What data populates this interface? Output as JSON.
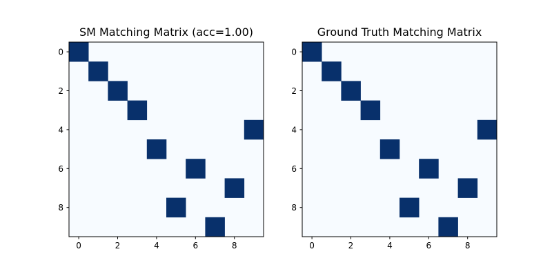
{
  "chart_data": [
    {
      "type": "heatmap",
      "title": "SM Matching Matrix (acc=1.00)",
      "xlabel": "",
      "ylabel": "",
      "rows": 10,
      "cols": 10,
      "x_ticks": [
        "0",
        "2",
        "4",
        "6",
        "8"
      ],
      "y_ticks": [
        "0",
        "2",
        "4",
        "6",
        "8"
      ],
      "colormap": "Blues",
      "value_range": [
        0,
        1
      ],
      "low_color": "#f7fbff",
      "high_color": "#08306b",
      "grid": false,
      "matrix": [
        [
          1,
          0,
          0,
          0,
          0,
          0,
          0,
          0,
          0,
          0
        ],
        [
          0,
          1,
          0,
          0,
          0,
          0,
          0,
          0,
          0,
          0
        ],
        [
          0,
          0,
          1,
          0,
          0,
          0,
          0,
          0,
          0,
          0
        ],
        [
          0,
          0,
          0,
          1,
          0,
          0,
          0,
          0,
          0,
          0
        ],
        [
          0,
          0,
          0,
          0,
          0,
          0,
          0,
          0,
          0,
          1
        ],
        [
          0,
          0,
          0,
          0,
          1,
          0,
          0,
          0,
          0,
          0
        ],
        [
          0,
          0,
          0,
          0,
          0,
          0,
          1,
          0,
          0,
          0
        ],
        [
          0,
          0,
          0,
          0,
          0,
          0,
          0,
          0,
          1,
          0
        ],
        [
          0,
          0,
          0,
          0,
          0,
          1,
          0,
          0,
          0,
          0
        ],
        [
          0,
          0,
          0,
          0,
          0,
          0,
          0,
          1,
          0,
          0
        ]
      ]
    },
    {
      "type": "heatmap",
      "title": "Ground Truth Matching Matrix",
      "xlabel": "",
      "ylabel": "",
      "rows": 10,
      "cols": 10,
      "x_ticks": [
        "0",
        "2",
        "4",
        "6",
        "8"
      ],
      "y_ticks": [
        "0",
        "2",
        "4",
        "6",
        "8"
      ],
      "colormap": "Blues",
      "value_range": [
        0,
        1
      ],
      "low_color": "#f7fbff",
      "high_color": "#08306b",
      "grid": false,
      "matrix": [
        [
          1,
          0,
          0,
          0,
          0,
          0,
          0,
          0,
          0,
          0
        ],
        [
          0,
          1,
          0,
          0,
          0,
          0,
          0,
          0,
          0,
          0
        ],
        [
          0,
          0,
          1,
          0,
          0,
          0,
          0,
          0,
          0,
          0
        ],
        [
          0,
          0,
          0,
          1,
          0,
          0,
          0,
          0,
          0,
          0
        ],
        [
          0,
          0,
          0,
          0,
          0,
          0,
          0,
          0,
          0,
          1
        ],
        [
          0,
          0,
          0,
          0,
          1,
          0,
          0,
          0,
          0,
          0
        ],
        [
          0,
          0,
          0,
          0,
          0,
          0,
          1,
          0,
          0,
          0
        ],
        [
          0,
          0,
          0,
          0,
          0,
          0,
          0,
          0,
          1,
          0
        ],
        [
          0,
          0,
          0,
          0,
          0,
          1,
          0,
          0,
          0,
          0
        ],
        [
          0,
          0,
          0,
          0,
          0,
          0,
          0,
          1,
          0,
          0
        ]
      ]
    }
  ]
}
